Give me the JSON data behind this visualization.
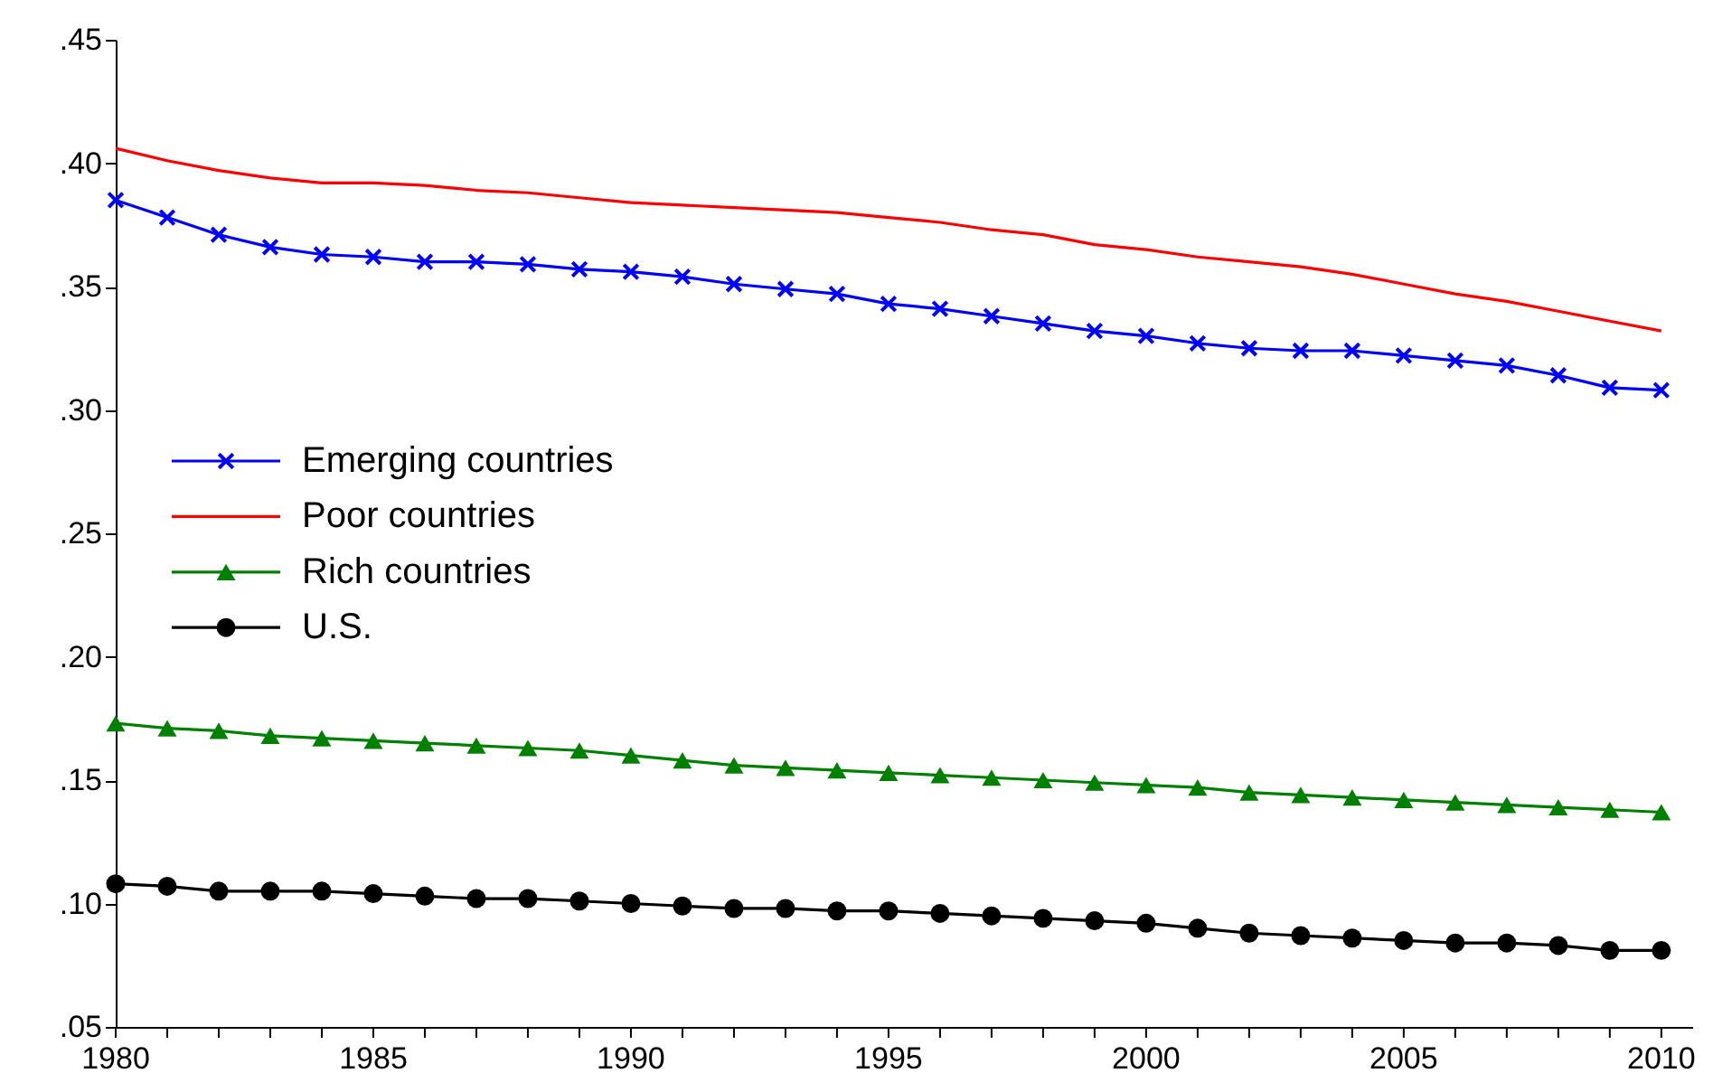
{
  "chart_data": {
    "type": "line",
    "x": [
      1980,
      1981,
      1982,
      1983,
      1984,
      1985,
      1986,
      1987,
      1988,
      1989,
      1990,
      1991,
      1992,
      1993,
      1994,
      1995,
      1996,
      1997,
      1998,
      1999,
      2000,
      2001,
      2002,
      2003,
      2004,
      2005,
      2006,
      2007,
      2008,
      2009,
      2010
    ],
    "series": [
      {
        "name": "Emerging countries",
        "color": "#0000ff",
        "marker": "cross",
        "values": [
          0.385,
          0.378,
          0.371,
          0.366,
          0.363,
          0.362,
          0.36,
          0.36,
          0.359,
          0.357,
          0.356,
          0.354,
          0.351,
          0.349,
          0.347,
          0.343,
          0.341,
          0.338,
          0.335,
          0.332,
          0.33,
          0.327,
          0.325,
          0.324,
          0.324,
          0.322,
          0.32,
          0.318,
          0.314,
          0.309,
          0.308
        ]
      },
      {
        "name": "Poor countries",
        "color": "#ff0000",
        "marker": "none",
        "values": [
          0.406,
          0.401,
          0.397,
          0.394,
          0.392,
          0.392,
          0.391,
          0.389,
          0.388,
          0.386,
          0.384,
          0.383,
          0.382,
          0.381,
          0.38,
          0.378,
          0.376,
          0.373,
          0.371,
          0.367,
          0.365,
          0.362,
          0.36,
          0.358,
          0.355,
          0.351,
          0.347,
          0.344,
          0.34,
          0.336,
          0.332
        ]
      },
      {
        "name": "Rich countries",
        "color": "#008000",
        "marker": "triangle",
        "values": [
          0.173,
          0.171,
          0.17,
          0.168,
          0.167,
          0.166,
          0.165,
          0.164,
          0.163,
          0.162,
          0.16,
          0.158,
          0.156,
          0.155,
          0.154,
          0.153,
          0.152,
          0.151,
          0.15,
          0.149,
          0.148,
          0.147,
          0.145,
          0.144,
          0.143,
          0.142,
          0.141,
          0.14,
          0.139,
          0.138,
          0.137
        ]
      },
      {
        "name": "U.S.",
        "color": "#000000",
        "marker": "circle",
        "values": [
          0.108,
          0.107,
          0.105,
          0.105,
          0.105,
          0.104,
          0.103,
          0.102,
          0.102,
          0.101,
          0.1,
          0.099,
          0.098,
          0.098,
          0.097,
          0.097,
          0.096,
          0.095,
          0.094,
          0.093,
          0.092,
          0.09,
          0.088,
          0.087,
          0.086,
          0.085,
          0.084,
          0.084,
          0.083,
          0.081,
          0.081
        ]
      }
    ],
    "xlim": [
      1980,
      2010.6
    ],
    "xticks": [
      1980,
      {
        "value": 1981,
        "label": null
      },
      {
        "value": 1982,
        "label": null
      },
      {
        "value": 1983,
        "label": null
      },
      {
        "value": 1984,
        "label": null
      },
      1985,
      {
        "value": 1986,
        "label": null
      },
      {
        "value": 1987,
        "label": null
      },
      {
        "value": 1988,
        "label": null
      },
      {
        "value": 1989,
        "label": null
      },
      1990,
      {
        "value": 1991,
        "label": null
      },
      {
        "value": 1992,
        "label": null
      },
      {
        "value": 1993,
        "label": null
      },
      {
        "value": 1994,
        "label": null
      },
      1995,
      {
        "value": 1996,
        "label": null
      },
      {
        "value": 1997,
        "label": null
      },
      {
        "value": 1998,
        "label": null
      },
      {
        "value": 1999,
        "label": null
      },
      2000,
      {
        "value": 2001,
        "label": null
      },
      {
        "value": 2002,
        "label": null
      },
      {
        "value": 2003,
        "label": null
      },
      {
        "value": 2004,
        "label": null
      },
      2005,
      {
        "value": 2006,
        "label": null
      },
      {
        "value": 2007,
        "label": null
      },
      {
        "value": 2008,
        "label": null
      },
      {
        "value": 2009,
        "label": null
      },
      2010
    ],
    "ylim": [
      0.05,
      0.45
    ],
    "yticks": [
      {
        "value": 0.05,
        "label": ".05"
      },
      {
        "value": 0.1,
        "label": ".10"
      },
      {
        "value": 0.15,
        "label": ".15"
      },
      {
        "value": 0.2,
        "label": ".20"
      },
      {
        "value": 0.25,
        "label": ".25"
      },
      {
        "value": 0.3,
        "label": ".30"
      },
      {
        "value": 0.35,
        "label": ".35"
      },
      {
        "value": 0.4,
        "label": ".40"
      },
      {
        "value": 0.45,
        "label": ".45"
      }
    ],
    "grid": false,
    "legend": "left",
    "line_style": "solid"
  }
}
